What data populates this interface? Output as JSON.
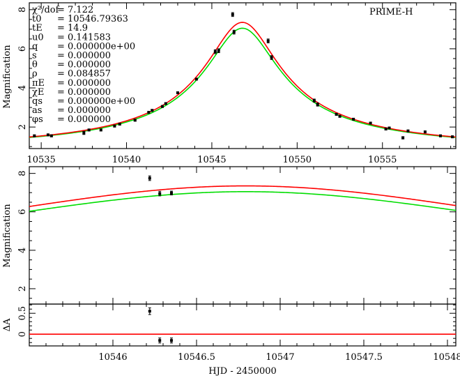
{
  "chart_data": [
    {
      "panel": "top",
      "type": "line+scatter",
      "title": "PRIME-H",
      "xlabel": "",
      "ylabel": "Magnification",
      "xlim": [
        10534.3,
        10559.3
      ],
      "ylim": [
        0.9,
        8.35
      ],
      "xticks": [
        10535,
        10540,
        10545,
        10550,
        10555
      ],
      "yticks": [
        2,
        4,
        6,
        8
      ],
      "model": {
        "t0": 10546.79363,
        "tE": 14.9,
        "u0": 0.141583,
        "rho": 0.084857
      },
      "series": [
        {
          "name": "model-red",
          "color": "#ff0000",
          "peak": 7.35,
          "base": 1.0
        },
        {
          "name": "model-green",
          "color": "#00dd00",
          "peak": 7.05,
          "base": 1.0
        }
      ],
      "points": [
        {
          "x": 10534.6,
          "y": 1.55,
          "err": 0.05
        },
        {
          "x": 10535.4,
          "y": 1.6,
          "err": 0.05
        },
        {
          "x": 10535.6,
          "y": 1.55,
          "err": 0.05
        },
        {
          "x": 10537.5,
          "y": 1.7,
          "err": 0.08
        },
        {
          "x": 10537.8,
          "y": 1.85,
          "err": 0.05
        },
        {
          "x": 10538.5,
          "y": 1.85,
          "err": 0.05
        },
        {
          "x": 10539.3,
          "y": 2.05,
          "err": 0.05
        },
        {
          "x": 10539.6,
          "y": 2.15,
          "err": 0.05
        },
        {
          "x": 10540.5,
          "y": 2.35,
          "err": 0.05
        },
        {
          "x": 10541.3,
          "y": 2.75,
          "err": 0.05
        },
        {
          "x": 10541.5,
          "y": 2.85,
          "err": 0.05
        },
        {
          "x": 10542.1,
          "y": 3.05,
          "err": 0.05
        },
        {
          "x": 10542.3,
          "y": 3.2,
          "err": 0.05
        },
        {
          "x": 10543.0,
          "y": 3.75,
          "err": 0.05
        },
        {
          "x": 10544.1,
          "y": 4.45,
          "err": 0.05
        },
        {
          "x": 10545.2,
          "y": 5.85,
          "err": 0.1
        },
        {
          "x": 10545.4,
          "y": 5.9,
          "err": 0.1
        },
        {
          "x": 10546.22,
          "y": 7.75,
          "err": 0.1
        },
        {
          "x": 10546.3,
          "y": 6.85,
          "err": 0.1
        },
        {
          "x": 10548.3,
          "y": 6.4,
          "err": 0.1
        },
        {
          "x": 10548.5,
          "y": 5.55,
          "err": 0.1
        },
        {
          "x": 10551.0,
          "y": 3.35,
          "err": 0.08
        },
        {
          "x": 10551.2,
          "y": 3.15,
          "err": 0.08
        },
        {
          "x": 10552.3,
          "y": 2.65,
          "err": 0.05
        },
        {
          "x": 10552.5,
          "y": 2.55,
          "err": 0.05
        },
        {
          "x": 10553.3,
          "y": 2.4,
          "err": 0.05
        },
        {
          "x": 10554.3,
          "y": 2.2,
          "err": 0.05
        },
        {
          "x": 10555.2,
          "y": 1.9,
          "err": 0.05
        },
        {
          "x": 10555.4,
          "y": 1.95,
          "err": 0.05
        },
        {
          "x": 10556.2,
          "y": 1.45,
          "err": 0.06
        },
        {
          "x": 10556.5,
          "y": 1.8,
          "err": 0.05
        },
        {
          "x": 10557.5,
          "y": 1.75,
          "err": 0.05
        },
        {
          "x": 10558.4,
          "y": 1.55,
          "err": 0.05
        },
        {
          "x": 10559.1,
          "y": 1.5,
          "err": 0.05
        }
      ]
    },
    {
      "panel": "middle",
      "type": "line+scatter",
      "xlabel": "",
      "ylabel": "Magnification",
      "xlim": [
        10545.5,
        10548.05
      ],
      "ylim": [
        1.2,
        8.35
      ],
      "xticks": [
        10546,
        10546.5,
        10547,
        10547.5,
        10548
      ],
      "yticks": [
        2,
        4,
        6,
        8
      ],
      "points": [
        {
          "x": 10546.22,
          "y": 7.75,
          "err": 0.12
        },
        {
          "x": 10546.28,
          "y": 6.95,
          "err": 0.12
        },
        {
          "x": 10546.35,
          "y": 6.98,
          "err": 0.1
        }
      ]
    },
    {
      "panel": "bottom",
      "type": "scatter",
      "xlabel": "HJD - 2450000",
      "ylabel": "ΔA",
      "xlim": [
        10545.5,
        10548.05
      ],
      "ylim": [
        -0.28,
        0.72
      ],
      "xticks": [
        10546,
        10546.5,
        10547,
        10547.5,
        10548
      ],
      "xtick_labels": [
        "10546",
        "10546.5",
        "10547",
        "10547.5",
        "10548"
      ],
      "yticks": [
        0,
        0.5
      ],
      "baseline": 0,
      "points": [
        {
          "x": 10546.22,
          "y": 0.55,
          "err": 0.08
        },
        {
          "x": 10546.28,
          "y": -0.15,
          "err": 0.06
        },
        {
          "x": 10546.35,
          "y": -0.15,
          "err": 0.06
        }
      ]
    }
  ],
  "params": [
    {
      "label": "χ²/dof",
      "value": "= 7.122"
    },
    {
      "label": "t0",
      "value": "= 10546.79363"
    },
    {
      "label": "tE",
      "value": "= 14.9"
    },
    {
      "label": "u0",
      "value": "= 0.141583"
    },
    {
      "label": "q",
      "value": "= 0.000000e+00"
    },
    {
      "label": "s",
      "value": "= 0.000000"
    },
    {
      "label": "θ",
      "value": "= 0.000000"
    },
    {
      "label": "ρ",
      "value": "= 0.084857"
    },
    {
      "label": "πE",
      "value": "= 0.000000"
    },
    {
      "label": "χE",
      "value": "= 0.000000"
    },
    {
      "label": "qs",
      "value": "= 0.000000e+00"
    },
    {
      "label": "as",
      "value": "= 0.000000"
    },
    {
      "label": "φs",
      "value": "= 0.000000"
    }
  ],
  "colors": {
    "red": "#ff0000",
    "green": "#00dd00",
    "black": "#000000"
  }
}
